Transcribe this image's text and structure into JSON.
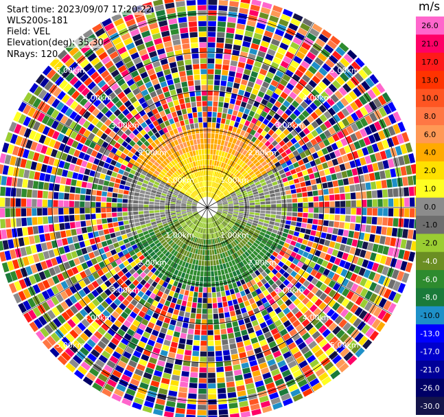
{
  "info": {
    "start_time": "Start time: 2023/09/07 17:20:22",
    "instrument": "WLS200s-181",
    "field": "Field: VEL",
    "elevation": "Elevation(deg): 35.30",
    "nrays": "NRays: 120"
  },
  "colorbar": {
    "unit": "m/s",
    "ticks": [
      "26.0",
      "21.0",
      "17.0",
      "13.0",
      "10.0",
      "8.0",
      "6.0",
      "4.0",
      "2.0",
      "1.0",
      "0.0",
      "-1.0",
      "-2.0",
      "-4.0",
      "-6.0",
      "-8.0",
      "-10.0",
      "-13.0",
      "-17.0",
      "-21.0",
      "-26.0",
      "-30.0"
    ],
    "colors": [
      "#ff66cc",
      "#ff0066",
      "#ff1a1a",
      "#ff3300",
      "#ff5522",
      "#ff7744",
      "#ff9955",
      "#ffaa00",
      "#ffe000",
      "#ffff22",
      "#8c8c8c",
      "#6e6e6e",
      "#9acd32",
      "#6b8e23",
      "#2e8b2e",
      "#1a7a3a",
      "#1e90c8",
      "#0000ff",
      "#0000cc",
      "#000099",
      "#000066",
      "#14144a"
    ]
  },
  "chart_data": {
    "type": "heatmap",
    "plot_kind": "PPI polar scan",
    "field": "VEL",
    "units": "m/s",
    "nrays": 120,
    "range_rings_labels": [
      "1.00km",
      "2.00km",
      "3.00km",
      "4.00km",
      "5.00km"
    ],
    "max_range_km": 5.5,
    "color_range": [
      -30.0,
      26.0
    ],
    "pattern": {
      "coherent_radius_km": 2.15,
      "north_sector": "positive velocities ~2 to 8 m/s (yellow to orange)",
      "south_sector": "negative velocities ~-2 to -8 m/s (green)",
      "east_west_sectors": "near zero (gray)",
      "beyond_coherent_radius": "noise, all colors"
    }
  }
}
